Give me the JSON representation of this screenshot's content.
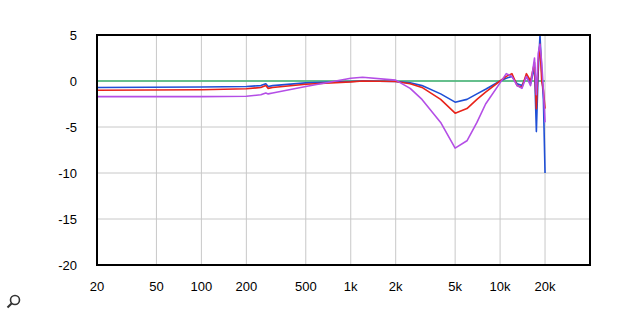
{
  "chart_data": {
    "type": "line",
    "log": "x",
    "grid": true,
    "x": [
      20,
      100,
      200,
      250,
      270,
      280,
      300,
      500,
      1000,
      1200,
      2000,
      2500,
      3000,
      4000,
      5000,
      6000,
      7000,
      8000,
      10000,
      11000,
      12000,
      13000,
      14000,
      15000,
      16000,
      17000,
      17500,
      18000,
      18500,
      19000,
      19500,
      20000
    ],
    "xlim": [
      20,
      40000
    ],
    "xticks": [
      20,
      50,
      100,
      200,
      500,
      {
        "value": 1000,
        "label": "1k"
      },
      {
        "value": 2000,
        "label": "2k"
      },
      {
        "value": 5000,
        "label": "5k"
      },
      {
        "value": 10000,
        "label": "10k"
      },
      {
        "value": 20000,
        "label": "20k"
      }
    ],
    "ylim": [
      -20,
      5
    ],
    "yticks": [
      -20,
      -15,
      -10,
      -5,
      0,
      5
    ],
    "series": [
      {
        "color": "#3cb371",
        "values": [
          0,
          0,
          0,
          0,
          0,
          0,
          0,
          0,
          0,
          0,
          0,
          0,
          0,
          0,
          0,
          0,
          0,
          0,
          0,
          0,
          0,
          0,
          0,
          0,
          0,
          0,
          0,
          0,
          0,
          0,
          0,
          0
        ]
      },
      {
        "color": "#1f4fd6",
        "values": [
          -0.7,
          -0.65,
          -0.6,
          -0.5,
          -0.3,
          -0.6,
          -0.5,
          -0.2,
          -0.05,
          0,
          -0.05,
          -0.2,
          -0.5,
          -1.4,
          -2.3,
          -2.0,
          -1.4,
          -0.9,
          0,
          0.3,
          0.5,
          -0.3,
          -0.5,
          0.5,
          -0.3,
          1.5,
          -5.5,
          1,
          5,
          1,
          -2,
          -10
        ]
      },
      {
        "color": "#e8231a",
        "values": [
          -1.0,
          -0.95,
          -0.85,
          -0.7,
          -0.5,
          -0.8,
          -0.7,
          -0.35,
          -0.1,
          0,
          -0.05,
          -0.3,
          -0.7,
          -2.0,
          -3.5,
          -3.0,
          -2.0,
          -1.2,
          0,
          0.5,
          0.8,
          -0.5,
          -0.7,
          0.8,
          0,
          2,
          -3,
          2,
          4,
          0,
          -1,
          -3
        ]
      },
      {
        "color": "#b44ee6",
        "values": [
          -1.7,
          -1.7,
          -1.65,
          -1.5,
          -1.3,
          -1.4,
          -1.3,
          -0.6,
          0.3,
          0.4,
          0.1,
          -0.8,
          -2.0,
          -4.5,
          -7.3,
          -6.5,
          -4.5,
          -2.5,
          -0.2,
          0.8,
          0.5,
          -0.5,
          -0.8,
          0.5,
          -0.5,
          2.5,
          -1.5,
          3,
          4,
          2,
          -1,
          -4.5
        ]
      }
    ]
  }
}
